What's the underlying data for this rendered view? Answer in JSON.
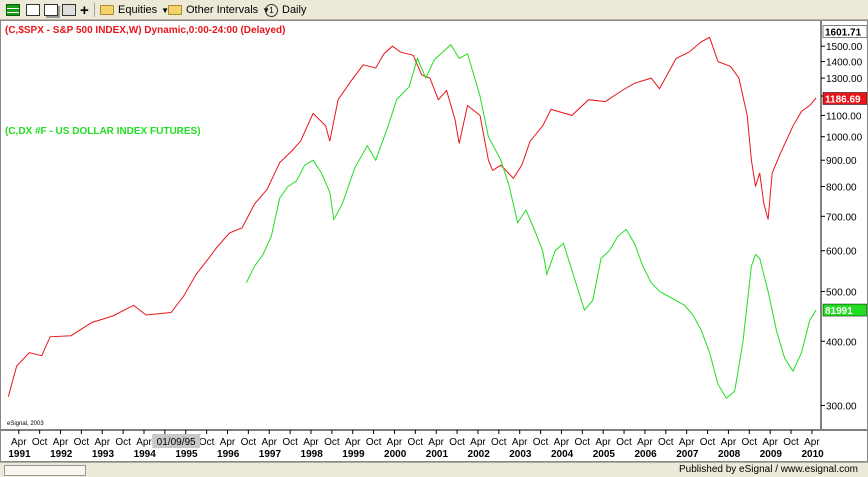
{
  "toolbar": {
    "equities_label": "Equities",
    "intervals_label": "Other Intervals",
    "daily_label": "Daily"
  },
  "footer": {
    "published": "Published by eSignal / www.esignal.com"
  },
  "chart_data": {
    "type": "line",
    "y_scale": "log",
    "ylim": [
      270,
      1620
    ],
    "y_ticks": [
      300,
      400,
      500,
      600,
      700,
      800,
      900,
      1000,
      1100,
      1200,
      1300,
      1400,
      1500
    ],
    "y_tick_labels": [
      "300.00",
      "400.00",
      "500.00",
      "600.00",
      "700.00",
      "800.00",
      "900.00",
      "1000.00",
      "1100.00",
      "1200.00",
      "1300.00",
      "1400.00",
      "1500.00"
    ],
    "price_badges": [
      {
        "text": "1601.71",
        "y": 1601.71,
        "bg": "#ffffff",
        "fg": "#000000"
      },
      {
        "text": "1186.69",
        "y": 1186.69,
        "bg": "#e8151b",
        "fg": "#ffffff"
      },
      {
        "text": "81991",
        "y": 460,
        "bg": "#22dd22",
        "fg": "#ffffff"
      }
    ],
    "x_start": 1990.92,
    "x_end": 2010.42,
    "month_labels": [
      "Apr",
      "Oct"
    ],
    "year_labels": [
      "1991",
      "1992",
      "1993",
      "1994",
      "1995",
      "1996",
      "1997",
      "1998",
      "1999",
      "2000",
      "2001",
      "2002",
      "2003",
      "2004",
      "2005",
      "2006",
      "2007",
      "2008",
      "2009",
      "2010"
    ],
    "cursor_date": "01/09/95",
    "watermark": "eSignal, 2003",
    "series": [
      {
        "name": "(C,$SPX - S&P 500 INDEX,W) Dynamic,0:00-24:00 (Delayed)",
        "color": "#e8151b",
        "points": [
          [
            1991.0,
            312
          ],
          [
            1991.2,
            358
          ],
          [
            1991.5,
            380
          ],
          [
            1991.8,
            375
          ],
          [
            1992.0,
            408
          ],
          [
            1992.5,
            410
          ],
          [
            1993.0,
            435
          ],
          [
            1993.5,
            448
          ],
          [
            1994.0,
            470
          ],
          [
            1994.3,
            450
          ],
          [
            1994.9,
            455
          ],
          [
            1995.2,
            490
          ],
          [
            1995.5,
            540
          ],
          [
            1995.8,
            580
          ],
          [
            1996.0,
            610
          ],
          [
            1996.3,
            650
          ],
          [
            1996.6,
            665
          ],
          [
            1996.9,
            740
          ],
          [
            1997.2,
            790
          ],
          [
            1997.5,
            890
          ],
          [
            1997.8,
            940
          ],
          [
            1998.0,
            980
          ],
          [
            1998.3,
            1110
          ],
          [
            1998.6,
            1050
          ],
          [
            1998.7,
            980
          ],
          [
            1998.9,
            1180
          ],
          [
            1999.2,
            1280
          ],
          [
            1999.5,
            1380
          ],
          [
            1999.8,
            1360
          ],
          [
            2000.0,
            1450
          ],
          [
            2000.2,
            1500
          ],
          [
            2000.4,
            1460
          ],
          [
            2000.7,
            1440
          ],
          [
            2000.9,
            1320
          ],
          [
            2001.1,
            1300
          ],
          [
            2001.3,
            1180
          ],
          [
            2001.5,
            1230
          ],
          [
            2001.7,
            1080
          ],
          [
            2001.8,
            970
          ],
          [
            2002.0,
            1150
          ],
          [
            2002.3,
            1100
          ],
          [
            2002.5,
            900
          ],
          [
            2002.6,
            860
          ],
          [
            2002.8,
            880
          ],
          [
            2003.1,
            830
          ],
          [
            2003.3,
            880
          ],
          [
            2003.5,
            980
          ],
          [
            2003.8,
            1050
          ],
          [
            2004.0,
            1130
          ],
          [
            2004.5,
            1100
          ],
          [
            2004.9,
            1180
          ],
          [
            2005.3,
            1170
          ],
          [
            2005.7,
            1230
          ],
          [
            2006.0,
            1270
          ],
          [
            2006.4,
            1300
          ],
          [
            2006.6,
            1240
          ],
          [
            2007.0,
            1420
          ],
          [
            2007.3,
            1460
          ],
          [
            2007.6,
            1530
          ],
          [
            2007.8,
            1560
          ],
          [
            2008.0,
            1400
          ],
          [
            2008.3,
            1370
          ],
          [
            2008.5,
            1300
          ],
          [
            2008.7,
            1100
          ],
          [
            2008.8,
            900
          ],
          [
            2008.9,
            800
          ],
          [
            2009.0,
            850
          ],
          [
            2009.1,
            740
          ],
          [
            2009.2,
            690
          ],
          [
            2009.3,
            850
          ],
          [
            2009.5,
            930
          ],
          [
            2009.8,
            1050
          ],
          [
            2010.0,
            1120
          ],
          [
            2010.2,
            1150
          ],
          [
            2010.35,
            1190
          ]
        ]
      },
      {
        "name": "(C,DX #F - US DOLLAR INDEX FUTURES)",
        "color": "#22dd22",
        "points": [
          [
            1996.7,
            520
          ],
          [
            1996.9,
            560
          ],
          [
            1997.1,
            590
          ],
          [
            1997.3,
            640
          ],
          [
            1997.5,
            760
          ],
          [
            1997.7,
            800
          ],
          [
            1997.9,
            820
          ],
          [
            1998.1,
            880
          ],
          [
            1998.3,
            900
          ],
          [
            1998.5,
            850
          ],
          [
            1998.7,
            780
          ],
          [
            1998.8,
            690
          ],
          [
            1999.0,
            740
          ],
          [
            1999.3,
            870
          ],
          [
            1999.6,
            960
          ],
          [
            1999.8,
            900
          ],
          [
            2000.1,
            1050
          ],
          [
            2000.3,
            1180
          ],
          [
            2000.6,
            1250
          ],
          [
            2000.8,
            1420
          ],
          [
            2001.0,
            1300
          ],
          [
            2001.2,
            1410
          ],
          [
            2001.4,
            1460
          ],
          [
            2001.6,
            1510
          ],
          [
            2001.8,
            1420
          ],
          [
            2002.0,
            1450
          ],
          [
            2002.3,
            1200
          ],
          [
            2002.5,
            1000
          ],
          [
            2002.8,
            900
          ],
          [
            2003.0,
            800
          ],
          [
            2003.2,
            680
          ],
          [
            2003.4,
            720
          ],
          [
            2003.6,
            660
          ],
          [
            2003.8,
            600
          ],
          [
            2003.9,
            540
          ],
          [
            2004.1,
            600
          ],
          [
            2004.3,
            620
          ],
          [
            2004.5,
            550
          ],
          [
            2004.8,
            460
          ],
          [
            2005.0,
            480
          ],
          [
            2005.2,
            580
          ],
          [
            2005.4,
            600
          ],
          [
            2005.6,
            640
          ],
          [
            2005.8,
            660
          ],
          [
            2006.0,
            620
          ],
          [
            2006.2,
            560
          ],
          [
            2006.4,
            520
          ],
          [
            2006.6,
            500
          ],
          [
            2006.8,
            490
          ],
          [
            2007.0,
            480
          ],
          [
            2007.2,
            470
          ],
          [
            2007.4,
            450
          ],
          [
            2007.6,
            420
          ],
          [
            2007.8,
            380
          ],
          [
            2008.0,
            330
          ],
          [
            2008.2,
            310
          ],
          [
            2008.4,
            320
          ],
          [
            2008.6,
            400
          ],
          [
            2008.8,
            560
          ],
          [
            2008.9,
            590
          ],
          [
            2009.0,
            580
          ],
          [
            2009.2,
            500
          ],
          [
            2009.4,
            420
          ],
          [
            2009.6,
            370
          ],
          [
            2009.8,
            350
          ],
          [
            2010.0,
            380
          ],
          [
            2010.2,
            440
          ],
          [
            2010.35,
            460
          ]
        ]
      }
    ]
  }
}
